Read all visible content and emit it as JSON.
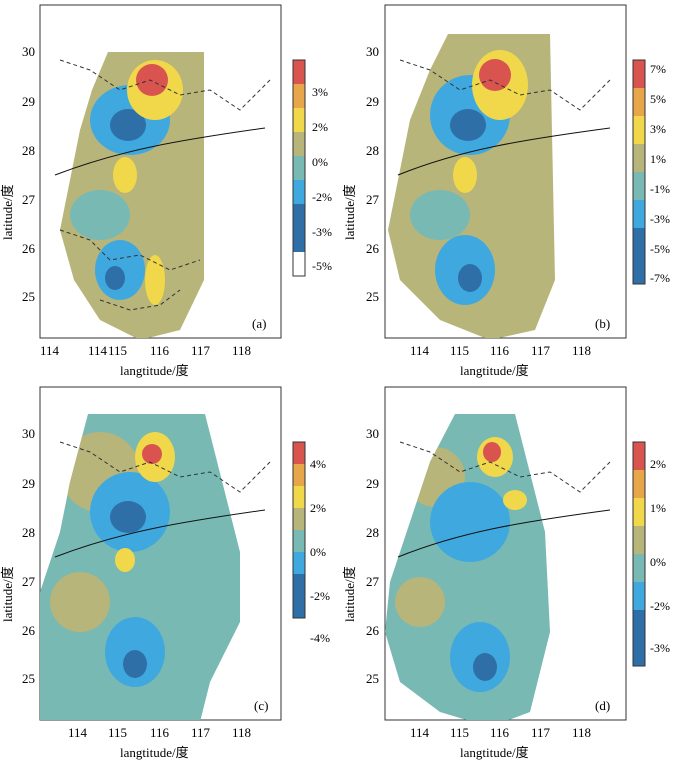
{
  "panels": [
    {
      "id": "a",
      "letter": "(a)",
      "x_ticks": [
        "114",
        "115",
        "116",
        "117",
        "118"
      ],
      "y_ticks": [
        "25",
        "26",
        "27",
        "28",
        "29",
        "30"
      ],
      "xlabel": "langtitude/度",
      "ylabel": "latitude/度",
      "colorbar_labels": [
        "3%",
        "2%",
        "0%",
        "-2%",
        "-3%",
        "-5%"
      ]
    },
    {
      "id": "b",
      "letter": "(b)",
      "x_ticks": [
        "114",
        "115",
        "116",
        "117",
        "118"
      ],
      "y_ticks": [
        "25",
        "26",
        "27",
        "28",
        "29",
        "30"
      ],
      "xlabel": "langtitude/度",
      "ylabel": "latitude/度",
      "colorbar_labels": [
        "7%",
        "5%",
        "3%",
        "1%",
        "-1%",
        "-3%",
        "-5%",
        "-7%"
      ]
    },
    {
      "id": "c",
      "letter": "(c)",
      "x_ticks": [
        "114",
        "115",
        "116",
        "117",
        "118"
      ],
      "y_ticks": [
        "25",
        "26",
        "27",
        "28",
        "29",
        "30"
      ],
      "xlabel": "langtitude/度",
      "ylabel": "latitude/度",
      "colorbar_labels": [
        "4%",
        "2%",
        "0%",
        "-2%",
        "-4%"
      ]
    },
    {
      "id": "d",
      "letter": "(d)",
      "x_ticks": [
        "114",
        "115",
        "116",
        "117",
        "118"
      ],
      "y_ticks": [
        "25",
        "26",
        "27",
        "28",
        "29",
        "30"
      ],
      "xlabel": "langtitude/度",
      "ylabel": "latitude/度",
      "colorbar_labels": [
        "2%",
        "1%",
        "0%",
        "-2%",
        "-3%"
      ]
    }
  ],
  "colors": {
    "red": "#d9534f",
    "orange": "#e8a64a",
    "yellow": "#f0d84a",
    "olive": "#b7b57a",
    "teal": "#78b9b4",
    "blue_light": "#3fa9df",
    "blue_dark": "#2f6fa8"
  }
}
